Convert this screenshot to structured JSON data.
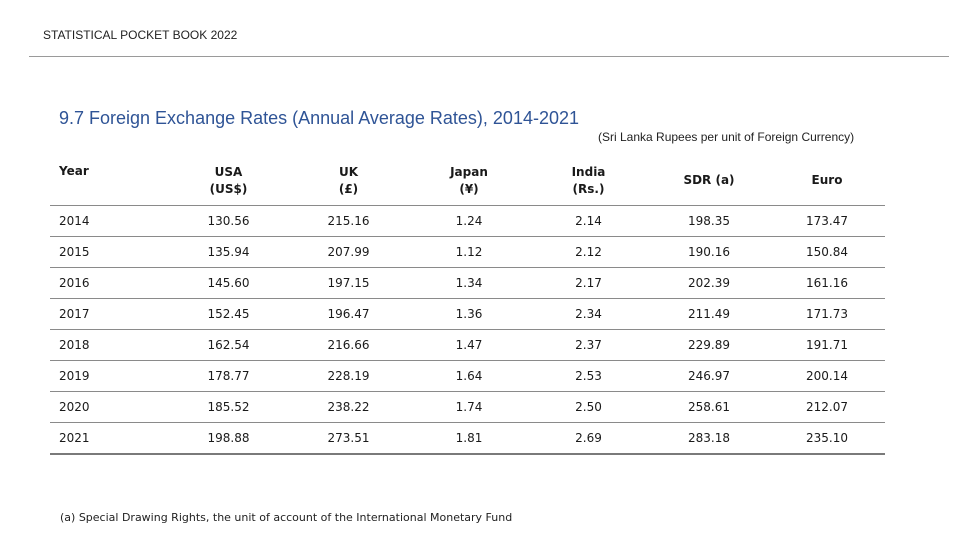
{
  "header": {
    "running_title": "STATISTICAL POCKET BOOK 2022"
  },
  "table": {
    "title": "9.7  Foreign Exchange Rates (Annual Average Rates), 2014-2021",
    "units_note": "(Sri Lanka Rupees per unit of Foreign Currency)",
    "columns": [
      {
        "label": "Year",
        "sub": ""
      },
      {
        "label": "USA",
        "sub": "(US$)"
      },
      {
        "label": "UK",
        "sub": "(£)"
      },
      {
        "label": "Japan",
        "sub": "(¥)"
      },
      {
        "label": "India",
        "sub": "(Rs.)"
      },
      {
        "label": "SDR (a)",
        "sub": ""
      },
      {
        "label": "Euro",
        "sub": ""
      }
    ],
    "rows": [
      [
        "2014",
        "130.56",
        "215.16",
        "1.24",
        "2.14",
        "198.35",
        "173.47"
      ],
      [
        "2015",
        "135.94",
        "207.99",
        "1.12",
        "2.12",
        "190.16",
        "150.84"
      ],
      [
        "2016",
        "145.60",
        "197.15",
        "1.34",
        "2.17",
        "202.39",
        "161.16"
      ],
      [
        "2017",
        "152.45",
        "196.47",
        "1.36",
        "2.34",
        "211.49",
        "171.73"
      ],
      [
        "2018",
        "162.54",
        "216.66",
        "1.47",
        "2.37",
        "229.89",
        "191.71"
      ],
      [
        "2019",
        "178.77",
        "228.19",
        "1.64",
        "2.53",
        "246.97",
        "200.14"
      ],
      [
        "2020",
        "185.52",
        "238.22",
        "1.74",
        "2.50",
        "258.61",
        "212.07"
      ],
      [
        "2021",
        "198.88",
        "273.51",
        "1.81",
        "2.69",
        "283.18",
        "235.10"
      ]
    ],
    "footnote": "(a) Special Drawing Rights, the unit of account of the International Monetary Fund"
  },
  "colors": {
    "title": "#2f5496",
    "rule": "#8a8a8a"
  }
}
